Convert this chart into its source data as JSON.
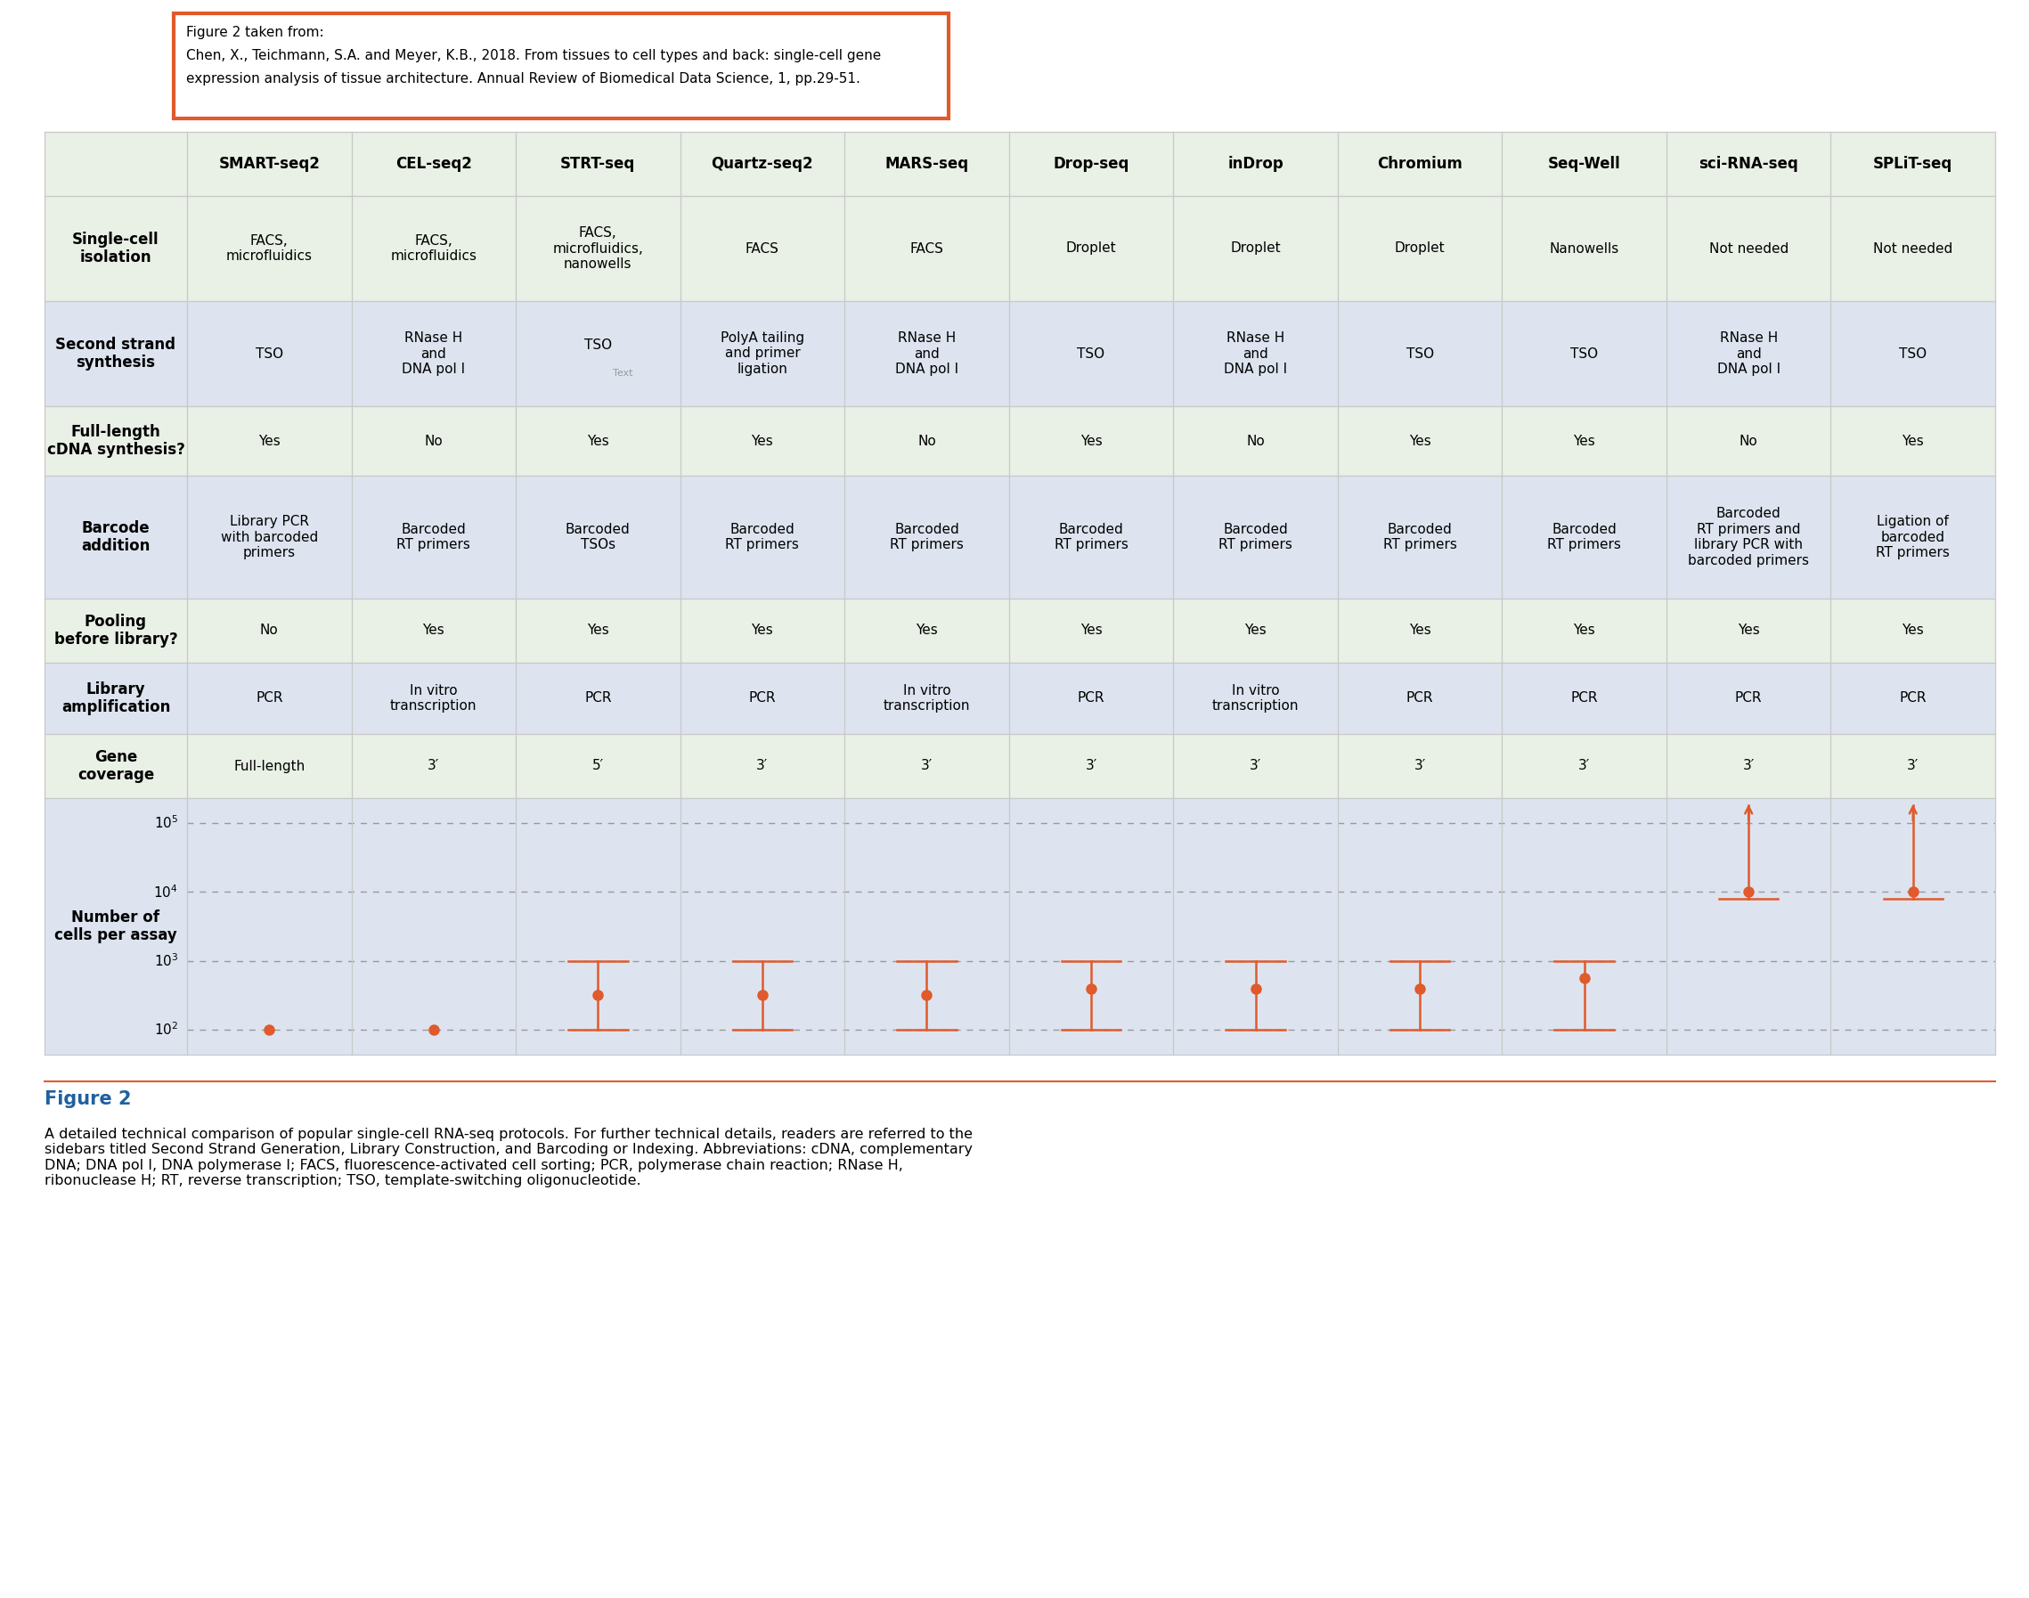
{
  "citation_box": {
    "line1": "Figure 2 taken from:",
    "line2": "Chen, X., Teichmann, S.A. and Meyer, K.B., 2018. From tissues to cell types and back: single-cell gene",
    "line3": "expression analysis of tissue architecture. Annual Review of Biomedical Data Science, 1, pp.29-51.",
    "border_color": "#E05A2B",
    "bg_color": "#FFFFFF"
  },
  "col_headers": [
    "SMART-seq2",
    "CEL-seq2",
    "STRT-seq",
    "Quartz-seq2",
    "MARS-seq",
    "Drop-seq",
    "inDrop",
    "Chromium",
    "Seq-Well",
    "sci-RNA-seq",
    "SPLiT-seq"
  ],
  "row_headers": [
    "Single-cell\nisolation",
    "Second strand\nsynthesis",
    "Full-length\ncDNA synthesis?",
    "Barcode\naddition",
    "Pooling\nbefore library?",
    "Library\namplification",
    "Gene\ncoverage",
    "Number of\ncells per assay"
  ],
  "table_data": [
    [
      "FACS,\nmicrofluidics",
      "FACS,\nmicrofluidics",
      "FACS,\nmicrofluidics,\nnanowells",
      "FACS",
      "FACS",
      "Droplet",
      "Droplet",
      "Droplet",
      "Nanowells",
      "Not needed",
      "Not needed"
    ],
    [
      "TSO",
      "RNase H\nand\nDNA pol I",
      "TSO",
      "PolyA tailing\nand primer\nligation",
      "RNase H\nand\nDNA pol I",
      "TSO",
      "RNase H\nand\nDNA pol I",
      "TSO",
      "TSO",
      "RNase H\nand\nDNA pol I",
      "TSO"
    ],
    [
      "Yes",
      "No",
      "Yes",
      "Yes",
      "No",
      "Yes",
      "No",
      "Yes",
      "Yes",
      "No",
      "Yes"
    ],
    [
      "Library PCR\nwith barcoded\nprimers",
      "Barcoded\nRT primers",
      "Barcoded\nTSOs",
      "Barcoded\nRT primers",
      "Barcoded\nRT primers",
      "Barcoded\nRT primers",
      "Barcoded\nRT primers",
      "Barcoded\nRT primers",
      "Barcoded\nRT primers",
      "Barcoded\nRT primers and\nlibrary PCR with\nbarcoded primers",
      "Ligation of\nbarcoded\nRT primers"
    ],
    [
      "No",
      "Yes",
      "Yes",
      "Yes",
      "Yes",
      "Yes",
      "Yes",
      "Yes",
      "Yes",
      "Yes",
      "Yes"
    ],
    [
      "PCR",
      "In vitro\ntranscription",
      "PCR",
      "PCR",
      "In vitro\ntranscription",
      "PCR",
      "In vitro\ntranscription",
      "PCR",
      "PCR",
      "PCR",
      "PCR"
    ],
    [
      "Full-length",
      "3′",
      "5′",
      "3′",
      "3′",
      "3′",
      "3′",
      "3′",
      "3′",
      "3′",
      "3′"
    ]
  ],
  "row_bg_colors": [
    "#E9F0E5",
    "#DDE4EF",
    "#E9F0E5",
    "#DDE4EF",
    "#E9F0E5",
    "#DDE4EF",
    "#E9F0E5",
    "#DDE4EF"
  ],
  "header_bg_color": "#E9F0E5",
  "grid_line_color": "#C8C8C8",
  "orange_color": "#E05A2B",
  "cells_data": [
    [
      2.0,
      2.0,
      2.0,
      false
    ],
    [
      2.0,
      2.0,
      2.0,
      false
    ],
    [
      2.5,
      2.0,
      3.0,
      false
    ],
    [
      2.5,
      2.0,
      3.0,
      false
    ],
    [
      2.5,
      2.0,
      3.0,
      false
    ],
    [
      2.6,
      2.0,
      3.0,
      false
    ],
    [
      2.6,
      2.0,
      3.0,
      false
    ],
    [
      2.6,
      2.0,
      3.0,
      false
    ],
    [
      2.75,
      2.0,
      3.0,
      false
    ],
    [
      4.0,
      3.9,
      5.3,
      true
    ],
    [
      4.0,
      3.9,
      5.3,
      true
    ]
  ],
  "figure_caption_title": "Figure 2",
  "figure_caption_color": "#2060A0",
  "figure_caption": "A detailed technical comparison of popular single-cell RNA-seq protocols. For further technical details, readers are referred to the\nsidebars titled Second Strand Generation, Library Construction, and Barcoding or Indexing. Abbreviations: cDNA, complementary\nDNA; DNA pol I, DNA polymerase I; FACS, fluorescence-activated cell sorting; PCR, polymerase chain reaction; RNase H,\nribonuclease H; RT, reverse transcription; TSO, template-switching oligonucleotide."
}
